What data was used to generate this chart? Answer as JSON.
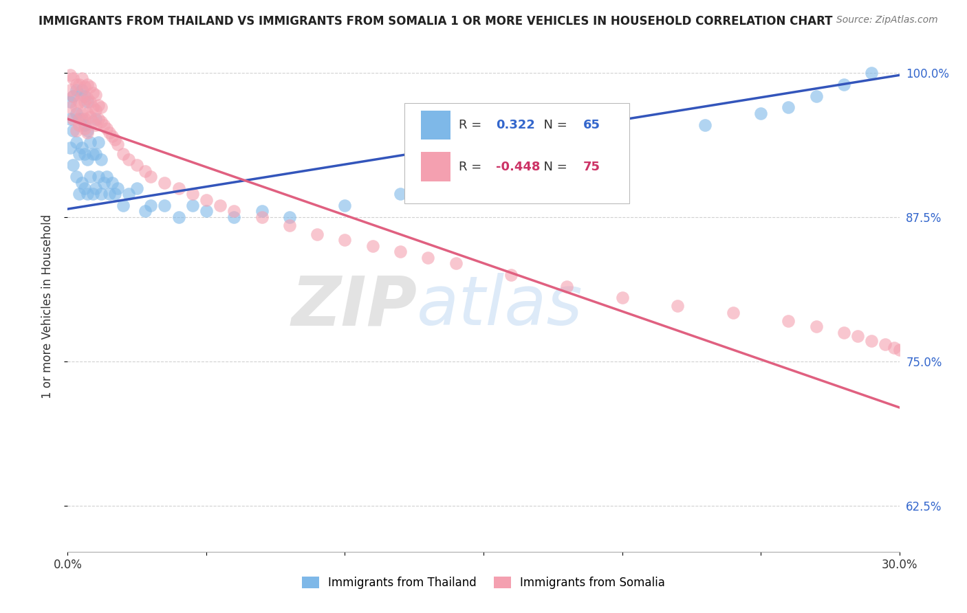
{
  "title": "IMMIGRANTS FROM THAILAND VS IMMIGRANTS FROM SOMALIA 1 OR MORE VEHICLES IN HOUSEHOLD CORRELATION CHART",
  "source": "Source: ZipAtlas.com",
  "ylabel": "1 or more Vehicles in Household",
  "xlim": [
    0.0,
    0.3
  ],
  "ylim": [
    0.585,
    1.01
  ],
  "x_ticks": [
    0.0,
    0.05,
    0.1,
    0.15,
    0.2,
    0.25,
    0.3
  ],
  "x_tick_labels": [
    "0.0%",
    "",
    "",
    "",
    "",
    "",
    "30.0%"
  ],
  "y_ticks": [
    0.625,
    0.75,
    0.875,
    1.0
  ],
  "y_tick_labels": [
    "62.5%",
    "75.0%",
    "87.5%",
    "100.0%"
  ],
  "thailand_color": "#7EB8E8",
  "somalia_color": "#F4A0B0",
  "thailand_R": 0.322,
  "thailand_N": 65,
  "somalia_R": -0.448,
  "somalia_N": 75,
  "legend_label_thailand": "Immigrants from Thailand",
  "legend_label_somalia": "Immigrants from Somalia",
  "watermark_zip": "ZIP",
  "watermark_atlas": "atlas",
  "thailand_trend_x": [
    0.0,
    0.3
  ],
  "thailand_trend_y": [
    0.882,
    0.998
  ],
  "somalia_trend_x": [
    0.0,
    0.3
  ],
  "somalia_trend_y": [
    0.96,
    0.71
  ],
  "thailand_x": [
    0.001,
    0.001,
    0.001,
    0.002,
    0.002,
    0.002,
    0.003,
    0.003,
    0.003,
    0.003,
    0.004,
    0.004,
    0.004,
    0.005,
    0.005,
    0.005,
    0.005,
    0.006,
    0.006,
    0.006,
    0.006,
    0.007,
    0.007,
    0.007,
    0.007,
    0.008,
    0.008,
    0.009,
    0.009,
    0.01,
    0.01,
    0.01,
    0.011,
    0.011,
    0.012,
    0.012,
    0.013,
    0.014,
    0.015,
    0.016,
    0.017,
    0.018,
    0.02,
    0.022,
    0.025,
    0.028,
    0.03,
    0.035,
    0.04,
    0.045,
    0.05,
    0.06,
    0.07,
    0.08,
    0.1,
    0.12,
    0.14,
    0.17,
    0.2,
    0.23,
    0.25,
    0.26,
    0.27,
    0.28,
    0.29
  ],
  "thailand_y": [
    0.935,
    0.96,
    0.975,
    0.92,
    0.95,
    0.98,
    0.91,
    0.94,
    0.965,
    0.985,
    0.895,
    0.93,
    0.96,
    0.905,
    0.935,
    0.96,
    0.985,
    0.9,
    0.93,
    0.955,
    0.98,
    0.895,
    0.925,
    0.95,
    0.975,
    0.91,
    0.94,
    0.895,
    0.93,
    0.9,
    0.93,
    0.96,
    0.91,
    0.94,
    0.895,
    0.925,
    0.905,
    0.91,
    0.895,
    0.905,
    0.895,
    0.9,
    0.885,
    0.895,
    0.9,
    0.88,
    0.885,
    0.885,
    0.875,
    0.885,
    0.88,
    0.875,
    0.88,
    0.875,
    0.885,
    0.895,
    0.905,
    0.92,
    0.94,
    0.955,
    0.965,
    0.97,
    0.98,
    0.99,
    1.0
  ],
  "somalia_x": [
    0.001,
    0.001,
    0.001,
    0.002,
    0.002,
    0.002,
    0.003,
    0.003,
    0.003,
    0.004,
    0.004,
    0.004,
    0.004,
    0.005,
    0.005,
    0.005,
    0.006,
    0.006,
    0.006,
    0.006,
    0.007,
    0.007,
    0.007,
    0.007,
    0.008,
    0.008,
    0.008,
    0.009,
    0.009,
    0.009,
    0.01,
    0.01,
    0.01,
    0.011,
    0.011,
    0.012,
    0.012,
    0.013,
    0.014,
    0.015,
    0.016,
    0.017,
    0.018,
    0.02,
    0.022,
    0.025,
    0.028,
    0.03,
    0.035,
    0.04,
    0.045,
    0.05,
    0.055,
    0.06,
    0.07,
    0.08,
    0.09,
    0.1,
    0.11,
    0.12,
    0.13,
    0.14,
    0.16,
    0.18,
    0.2,
    0.22,
    0.24,
    0.26,
    0.27,
    0.28,
    0.285,
    0.29,
    0.295,
    0.298,
    0.3
  ],
  "somalia_y": [
    0.97,
    0.985,
    0.998,
    0.96,
    0.98,
    0.995,
    0.95,
    0.97,
    0.99,
    0.96,
    0.975,
    0.99,
    0.955,
    0.965,
    0.98,
    0.995,
    0.96,
    0.975,
    0.988,
    0.952,
    0.965,
    0.978,
    0.99,
    0.948,
    0.962,
    0.975,
    0.988,
    0.958,
    0.97,
    0.983,
    0.955,
    0.968,
    0.981,
    0.96,
    0.972,
    0.958,
    0.97,
    0.955,
    0.952,
    0.948,
    0.945,
    0.942,
    0.938,
    0.93,
    0.925,
    0.92,
    0.915,
    0.91,
    0.905,
    0.9,
    0.895,
    0.89,
    0.885,
    0.88,
    0.875,
    0.868,
    0.86,
    0.855,
    0.85,
    0.845,
    0.84,
    0.835,
    0.825,
    0.815,
    0.805,
    0.798,
    0.792,
    0.785,
    0.78,
    0.775,
    0.772,
    0.768,
    0.765,
    0.762,
    0.76
  ]
}
